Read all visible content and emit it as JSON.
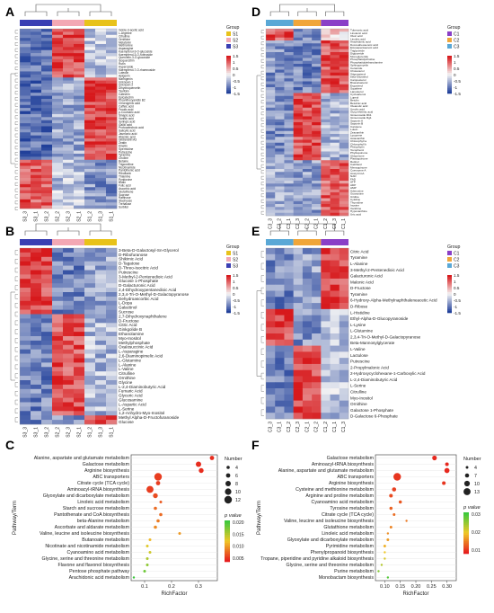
{
  "panels": {
    "A": {
      "letter": "A",
      "legend_title": "Group",
      "groups": [
        "S1",
        "S2",
        "S3"
      ],
      "group_colors": [
        "#e8c21a",
        "#f3a8b4",
        "#3a3fb3"
      ],
      "scale_ticks": [
        "1.5",
        "1",
        "0.5",
        "0",
        "-0.5",
        "-1",
        "-1.5"
      ],
      "columns": [
        "S3_3",
        "S3_1",
        "S3_2",
        "S2_2",
        "S2_3",
        "S2_1",
        "S1_2",
        "S1_3",
        "S1_1"
      ],
      "rows": [
        "Indole-3-acetic acid",
        "L-Arginine",
        "Citrulline",
        "Ornithine",
        "Melatonin",
        "Methionine",
        "Asparagine",
        "Kaempferol-3-O-glucoside",
        "Kaempferol-3-O-rutinoside",
        "Quercetin-3-O-glucoside",
        "Isoquercitrin",
        "Rutin",
        "Hyperoside",
        "Kaempferol-7-O-rhamnoside",
        "Luteolin",
        "Apigenin",
        "Naringenin",
        "Unknown 1",
        "Unknown 2",
        "Dihydroquercetin",
        "Taxifolin",
        "Catechin",
        "Epicatechin",
        "Proanthocyanidin B2",
        "Chlorogenic acid",
        "Caffeic acid",
        "Ferulic acid",
        "p-Coumaric acid",
        "Sinapic acid",
        "Vanillic acid",
        "Syringic acid",
        "Gallic acid",
        "Protocatechuic acid",
        "Salicylic acid",
        "Jasmonic acid",
        "Abscisic acid",
        "Gibberellin A3",
        "Zeatin",
        "Kinetin",
        "Spermidine",
        "Putrescine",
        "Tyramine",
        "Choline",
        "Betaine",
        "Trigonelline",
        "Nicotinamide",
        "Pantothenic acid",
        "Riboflavin",
        "Thiamine",
        "Pyridoxine",
        "Biotin",
        "Folic acid",
        "Ascorbic acid",
        "Glutathione",
        "Sucrose",
        "Raffinose",
        "Stachyose",
        "Trehalose",
        "Sorbitol"
      ]
    },
    "B": {
      "letter": "B",
      "legend_title": "Group",
      "groups": [
        "S1",
        "S2",
        "S3"
      ],
      "group_colors": [
        "#e8c21a",
        "#f3a8b4",
        "#3a3fb3"
      ],
      "scale_ticks": [
        "1.5",
        "1",
        "0.5",
        "0",
        "-0.5",
        "-1",
        "-1.5"
      ],
      "columns": [
        "S3_3",
        "S3_1",
        "S3_2",
        "S2_2",
        "S2_3",
        "S2_1",
        "S1_2",
        "S1_3",
        "S1_1"
      ],
      "rows": [
        "3-Beta-D-Galactosyl-Sn-Glycerol",
        "D-Ribofuranose",
        "Shikimic Acid",
        "D-Tagatose",
        "D-Threo-Isocitric Acid",
        "Putrescine",
        "3-Methyl-2-Pentenedioic Acid",
        "Glucose 1-Phosphate",
        "D-Galacturonic Acid",
        "2,4-Dihydroxypentanedioic Acid",
        "2,3,4-Tri-O-Methyl-D-Galactopyranose",
        "Dehydroascorbic Acid",
        "L-Dopa",
        "Galactinol",
        "Sucrose",
        "2,7-Dihydroxynaphthalene",
        "D-Fructose",
        "Citric Acid",
        "Ginkgolide B",
        "Ethanolamine",
        "Myo-Inositol",
        "Methylphosphate",
        "Oxalosuccinic Acid",
        "L-Asparagine",
        "2,6-Diaminopimelic Acid",
        "L-Glutamine",
        "L-Alanine",
        "L-Valine",
        "Citrulline",
        "Ornithine",
        "Glycine",
        "L-2,4-Diaminobutyric Acid",
        "Fumaric Acid",
        "Glyceric Acid",
        "Glucosamine",
        "L-Aspartic Acid",
        "L-Serine",
        "1,2-Anhydro-Myo-Inositol",
        "Methyl Alpha-D-Fructofuranoside",
        "Glucose"
      ]
    },
    "C": {
      "letter": "C",
      "x_axis_label": "RichFactor",
      "y_axis_label": "Pathway/Term",
      "size_legend_title": "Number",
      "color_legend_title": "p value",
      "size_legend_values": [
        "4",
        "6",
        "8",
        "10",
        "12"
      ],
      "color_legend_ticks": [
        "0.020",
        "0.015",
        "0.010",
        "0.005"
      ],
      "x_ticks": [
        "0.1",
        "0.2",
        "0.3"
      ]
    },
    "D": {
      "letter": "D",
      "legend_title": "Group",
      "groups": [
        "C1",
        "C2",
        "C3"
      ],
      "group_colors": [
        "#8a3fc7",
        "#f0a63a",
        "#5aa8d6"
      ],
      "scale_ticks": [
        "1.5",
        "1",
        "0.5",
        "0",
        "-0.5",
        "-1",
        "-1.5"
      ],
      "columns": [
        "C3_3",
        "C3_2",
        "C3_1",
        "C2_3",
        "C2_2",
        "C2_1",
        "C1_2",
        "C1_3",
        "C1_1"
      ],
      "rows": [
        "Tuberonic acid",
        "Linolenic acid",
        "Oleic acid",
        "Linoleic acid",
        "Arachidonic acid",
        "Docosahexaenoic acid",
        "Eicosapentaenoic acid",
        "Triglyceride",
        "Diglyceride",
        "Monoglyceride",
        "Phosphatidylcholine",
        "Phosphatidylethanolamine",
        "Sphingomyelin",
        "Ceramide",
        "Cholesterol",
        "Stigmasterol",
        "beta-Sitosterol",
        "Campesterol",
        "Brassicasterol",
        "Ergosterol",
        "Squalene",
        "Lanosterol",
        "Cycloartenol",
        "Lupeol",
        "Betulin",
        "Betulinic acid",
        "Oleanolic acid",
        "Ursolic acid",
        "Glycyrrhetinic acid",
        "Ginsenoside Rb1",
        "Ginsenoside Rg1",
        "Saponin A",
        "Saponin B",
        "Carotene",
        "Lutein",
        "Zeaxanthin",
        "Lycopene",
        "Astaxanthin",
        "Chlorophyll a",
        "Chlorophyll b",
        "Pheophytin",
        "Tocopherol",
        "Phylloquinone",
        "Ubiquinone",
        "Plastoquinone",
        "Retinol",
        "Calciferol",
        "Menaquinone",
        "Coenzyme A",
        "Acetyl-CoA",
        "NAD",
        "FAD",
        "ATP",
        "ADP",
        "AMP",
        "Adenosine",
        "Guanosine",
        "Uridine",
        "Cytidine",
        "Thymidine",
        "Inosine",
        "Xanthine",
        "Hypoxanthine",
        "Uric acid"
      ]
    },
    "E": {
      "letter": "E",
      "legend_title": "Group",
      "groups": [
        "C1",
        "C2",
        "C3"
      ],
      "group_colors": [
        "#8a3fc7",
        "#f0a63a",
        "#5aa8d6"
      ],
      "scale_ticks": [
        "1.5",
        "1",
        "0.5",
        "0",
        "-0.5",
        "-1",
        "-1.5"
      ],
      "columns": [
        "C3_3",
        "C3_1",
        "C3_2",
        "C2_3",
        "C2_1",
        "C2_2",
        "C1_2",
        "C1_1",
        "C1_3"
      ],
      "rows": [
        "Citric Acid",
        "Tyramine",
        "L-Alanine",
        "3-Methyl-2-Pentenedioic Acid",
        "Galacturonic Acid",
        "Malonic Acid",
        "D-Fructose",
        "Tyramine",
        "6-Hydroxy-Alpha-Methylnaphthaleneacetic Acid",
        "D-Ribose",
        "L-Histidine",
        "Ethyl-Alpha-D-Glucopyranoside",
        "L-Lysine",
        "L-Glutamine",
        "2,3,4-Tri-O-Methyl-D-Galactopyranose",
        "Beta-Mannosylglycerate",
        "L-Valine",
        "Lactulose",
        "Putrescine",
        "2-Propylmalonic Acid",
        "2-Hydroxycyclohexane-1-Carboxylic Acid",
        "L-2,4-Diaminobutyric Acid",
        "L-Serine",
        "Citrulline",
        "Myo-Inositol",
        "Ornithine",
        "Galactose 1-Phosphate",
        "D-Galactose 6-Phosphate"
      ]
    },
    "F": {
      "letter": "F",
      "x_axis_label": "RichFactor",
      "y_axis_label": "Pathway/Term",
      "size_legend_title": "Number",
      "color_legend_title": "p value",
      "size_legend_values": [
        "4",
        "7",
        "10",
        "13"
      ],
      "color_legend_ticks": [
        "0.03",
        "0.02",
        "0.01"
      ],
      "x_ticks": [
        "0.10",
        "0.15",
        "0.20",
        "0.25",
        "0.30"
      ]
    }
  },
  "chart_data": [
    {
      "type": "heatmap",
      "panel": "A",
      "columns": [
        "S3_3",
        "S3_1",
        "S3_2",
        "S2_2",
        "S2_3",
        "S2_1",
        "S1_2",
        "S1_3",
        "S1_1"
      ],
      "legend": [
        "S1",
        "S2",
        "S3"
      ],
      "range": [
        -1.5,
        1.5
      ]
    },
    {
      "type": "heatmap",
      "panel": "B",
      "columns": [
        "S3_3",
        "S3_1",
        "S3_2",
        "S2_2",
        "S2_3",
        "S2_1",
        "S1_2",
        "S1_3",
        "S1_1"
      ],
      "legend": [
        "S1",
        "S2",
        "S3"
      ],
      "range": [
        -1.5,
        1.5
      ]
    },
    {
      "type": "scatter",
      "panel": "C",
      "xlabel": "RichFactor",
      "ylabel": "Pathway/Term",
      "xlim": [
        0.05,
        0.37
      ],
      "categories": [
        "Alanine, aspartate and glutamate metabolism",
        "Galactose metabolism",
        "Arginine biosynthesis",
        "ABC transporters",
        "Citrate cycle (TCA cycle)",
        "Aminoacyl-tRNA biosynthesis",
        "Glyoxylate and dicarboxylate metabolism",
        "Linoleic acid metabolism",
        "Starch and sucrose metabolism",
        "Pantothenate and CoA biosynthesis",
        "beta-Alanine metabolism",
        "Ascorbate and aldarate metabolism",
        "Valine, leucine and isoleucine biosynthesis",
        "Butanoate metabolism",
        "Nicotinate and nicotinamide metabolism",
        "Cyanoamino acid metabolism",
        "Glycine, serine and threonine metabolism",
        "Flavone and flavonol biosynthesis",
        "Pentose phosphate pathway",
        "Arachidonic acid metabolism"
      ],
      "x": [
        0.35,
        0.3,
        0.31,
        0.15,
        0.15,
        0.12,
        0.14,
        0.16,
        0.14,
        0.16,
        0.15,
        0.14,
        0.23,
        0.12,
        0.11,
        0.12,
        0.11,
        0.11,
        0.1,
        0.06
      ],
      "number": [
        6,
        8,
        7,
        12,
        6,
        11,
        7,
        3,
        4,
        4,
        4,
        4,
        3,
        3,
        3,
        3,
        3,
        3,
        3,
        2
      ],
      "p_value": [
        0.001,
        0.001,
        0.001,
        0.002,
        0.002,
        0.002,
        0.003,
        0.004,
        0.005,
        0.005,
        0.006,
        0.007,
        0.008,
        0.01,
        0.012,
        0.013,
        0.015,
        0.017,
        0.019,
        0.022
      ]
    },
    {
      "type": "heatmap",
      "panel": "D",
      "columns": [
        "C3_3",
        "C3_2",
        "C3_1",
        "C2_3",
        "C2_2",
        "C2_1",
        "C1_2",
        "C1_3",
        "C1_1"
      ],
      "legend": [
        "C1",
        "C2",
        "C3"
      ],
      "range": [
        -1.5,
        1.5
      ]
    },
    {
      "type": "heatmap",
      "panel": "E",
      "columns": [
        "C3_3",
        "C3_1",
        "C3_2",
        "C2_3",
        "C2_1",
        "C2_2",
        "C1_2",
        "C1_1",
        "C1_3"
      ],
      "legend": [
        "C1",
        "C2",
        "C3"
      ],
      "range": [
        -1.5,
        1.5
      ]
    },
    {
      "type": "scatter",
      "panel": "F",
      "xlabel": "RichFactor",
      "ylabel": "Pathway/Term",
      "xlim": [
        0.07,
        0.33
      ],
      "categories": [
        "Galactose metabolism",
        "Aminoacyl-tRNA biosynthesis",
        "Alanine, aspartate and glutamate metabolism",
        "ABC transporters",
        "Arginine biosynthesis",
        "Cysteine and methionine metabolism",
        "Arginine and proline metabolism",
        "Cyanoamino acid metabolism",
        "Tyrosine metabolism",
        "Citrate cycle (TCA cycle)",
        "Valine, leucine and isoleucine biosynthesis",
        "Glutathione metabolism",
        "Linoleic acid metabolism",
        "Glyoxylate and dicarboxylate metabolism",
        "Pyrimidine metabolism",
        "Phenylpropanoid biosynthesis",
        "Tropane, piperidine and pyridine alkaloid biosynthesis",
        "Glycine, serine and threonine metabolism",
        "Purine metabolism",
        "Monobactam biosynthesis"
      ],
      "x": [
        0.26,
        0.3,
        0.3,
        0.14,
        0.29,
        0.13,
        0.12,
        0.15,
        0.12,
        0.13,
        0.17,
        0.12,
        0.11,
        0.11,
        0.1,
        0.1,
        0.1,
        0.09,
        0.08,
        0.11
      ],
      "number": [
        8,
        6,
        9,
        14,
        6,
        7,
        6,
        5,
        5,
        4,
        3,
        4,
        3,
        4,
        4,
        3,
        3,
        3,
        3,
        3
      ],
      "p_value": [
        0.001,
        0.001,
        0.001,
        0.002,
        0.002,
        0.003,
        0.004,
        0.005,
        0.006,
        0.007,
        0.008,
        0.009,
        0.01,
        0.011,
        0.013,
        0.015,
        0.017,
        0.02,
        0.024,
        0.028
      ]
    }
  ]
}
